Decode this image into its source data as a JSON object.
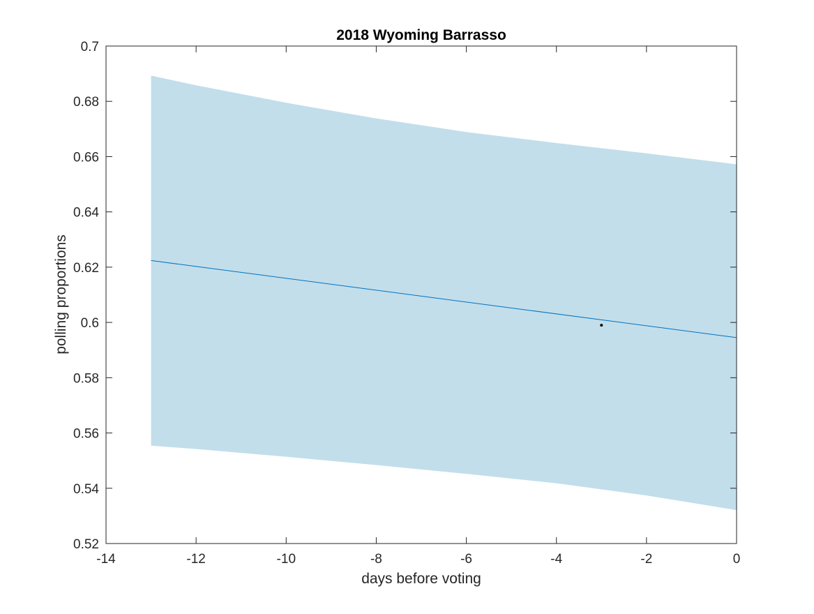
{
  "chart_data": {
    "type": "line",
    "title": "2018 Wyoming Barrasso",
    "xlabel": "days before voting",
    "ylabel": "polling proportions",
    "xlim": [
      -14,
      0
    ],
    "ylim": [
      0.52,
      0.7
    ],
    "xticks": [
      -14,
      -12,
      -10,
      -8,
      -6,
      -4,
      -2,
      0
    ],
    "xtick_labels": [
      "-14",
      "-12",
      "-10",
      "-8",
      "-6",
      "-4",
      "-2",
      "0"
    ],
    "yticks": [
      0.52,
      0.54,
      0.56,
      0.58,
      0.6,
      0.62,
      0.64,
      0.66,
      0.68,
      0.7
    ],
    "ytick_labels": [
      "0.52",
      "0.54",
      "0.56",
      "0.58",
      "0.6",
      "0.62",
      "0.64",
      "0.66",
      "0.68",
      "0.7"
    ],
    "grid": false,
    "legend": "none",
    "series": [
      {
        "kind": "band",
        "color": "#c2deeb",
        "x": [
          -13,
          -12,
          -10,
          -8,
          -6,
          -4,
          -2,
          0
        ],
        "upper": [
          0.6893,
          0.6858,
          0.6795,
          0.6738,
          0.6689,
          0.6649,
          0.6612,
          0.6572
        ],
        "lower": [
          0.5554,
          0.5542,
          0.5514,
          0.5484,
          0.5452,
          0.5418,
          0.5374,
          0.5321
        ]
      },
      {
        "kind": "line",
        "color": "#0072bd",
        "x": [
          -13,
          0
        ],
        "y": [
          0.6224,
          0.5945
        ]
      },
      {
        "kind": "scatter",
        "color": "#000000",
        "x": [
          -3
        ],
        "y": [
          0.599
        ]
      }
    ]
  }
}
